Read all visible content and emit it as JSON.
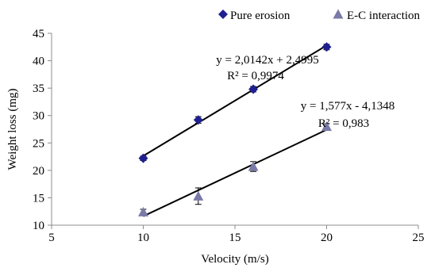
{
  "chart_data": {
    "type": "scatter",
    "xlabel": "Velocity (m/s)",
    "ylabel": "Weight loss (mg)",
    "xlim": [
      5,
      25
    ],
    "ylim": [
      10,
      45
    ],
    "xticks": [
      5,
      10,
      15,
      20,
      25
    ],
    "yticks": [
      10,
      15,
      20,
      25,
      30,
      35,
      40,
      45
    ],
    "grid": false,
    "legend_position": "top-right",
    "series": [
      {
        "name": "Pure erosion",
        "marker": "diamond",
        "color": "#1f1f8f",
        "x": [
          10,
          13,
          16,
          20
        ],
        "y": [
          22.2,
          29.2,
          34.8,
          42.5
        ],
        "error": [
          0.4,
          0.6,
          0.5,
          0.5
        ],
        "trendline": {
          "slope": 2.0142,
          "intercept": 2.4995
        },
        "equation": "y = 2,0142x + 2,4995",
        "r2": "R² = 0,9974"
      },
      {
        "name": "E-C interaction",
        "marker": "triangle",
        "color": "#7a7aa8",
        "x": [
          10,
          13,
          16,
          20
        ],
        "y": [
          12.4,
          15.3,
          20.7,
          28.0
        ],
        "error": [
          0.5,
          1.5,
          0.9,
          0.5
        ],
        "trendline": {
          "slope": 1.577,
          "intercept": -4.1348
        },
        "equation": "y = 1,577x - 4,1348",
        "r2": "R² = 0,983"
      }
    ]
  }
}
